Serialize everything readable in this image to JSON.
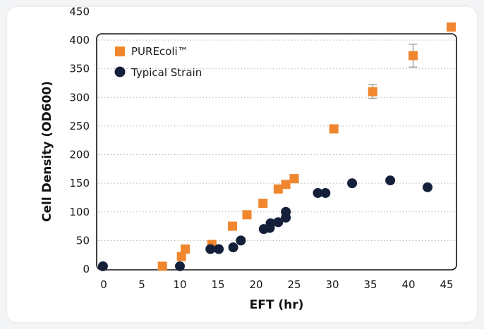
{
  "chart_data": {
    "type": "scatter",
    "title": "",
    "xlabel": "EFT (hr)",
    "ylabel": "Cell Density (OD600)",
    "xlim": [
      -1,
      46
    ],
    "ylim": [
      0,
      450
    ],
    "x_ticks": [
      0,
      5,
      10,
      15,
      20,
      25,
      30,
      35,
      40,
      45
    ],
    "y_ticks": [
      0,
      50,
      100,
      150,
      200,
      250,
      300,
      350,
      400,
      450
    ],
    "grid": "horizontal dotted",
    "legend_position": "top-left",
    "series": [
      {
        "name": "PUREcoli™",
        "marker": "square",
        "color": "#f0862e",
        "points": [
          {
            "x": 7.7,
            "y": 5
          },
          {
            "x": 10.2,
            "y": 22
          },
          {
            "x": 10.7,
            "y": 35
          },
          {
            "x": 14.2,
            "y": 43
          },
          {
            "x": 16.9,
            "y": 75
          },
          {
            "x": 18.8,
            "y": 95
          },
          {
            "x": 20.9,
            "y": 115
          },
          {
            "x": 22.9,
            "y": 140
          },
          {
            "x": 23.9,
            "y": 148
          },
          {
            "x": 25.0,
            "y": 158
          },
          {
            "x": 30.2,
            "y": 245
          },
          {
            "x": 35.3,
            "y": 310,
            "err": 12
          },
          {
            "x": 40.6,
            "y": 373,
            "err": 20
          },
          {
            "x": 45.6,
            "y": 423
          }
        ]
      },
      {
        "name": "Typical Strain",
        "marker": "circle",
        "color": "#14203a",
        "points": [
          {
            "x": -0.1,
            "y": 5
          },
          {
            "x": 10.0,
            "y": 5
          },
          {
            "x": 14.0,
            "y": 35
          },
          {
            "x": 15.1,
            "y": 35
          },
          {
            "x": 17.0,
            "y": 38
          },
          {
            "x": 18.0,
            "y": 50
          },
          {
            "x": 21.0,
            "y": 70
          },
          {
            "x": 21.8,
            "y": 72
          },
          {
            "x": 21.9,
            "y": 80
          },
          {
            "x": 22.9,
            "y": 82
          },
          {
            "x": 23.9,
            "y": 90
          },
          {
            "x": 23.9,
            "y": 100
          },
          {
            "x": 28.1,
            "y": 133
          },
          {
            "x": 29.1,
            "y": 133
          },
          {
            "x": 32.6,
            "y": 150
          },
          {
            "x": 37.6,
            "y": 155
          },
          {
            "x": 42.5,
            "y": 143
          }
        ]
      }
    ]
  },
  "colors": {
    "frame": "#111111",
    "grid": "#b5b5b5",
    "errorbar": "#8a8a8a"
  }
}
